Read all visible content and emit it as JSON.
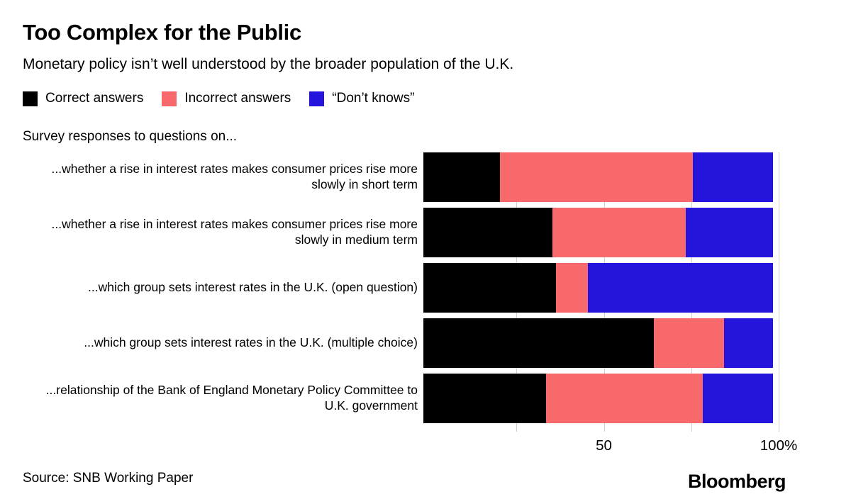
{
  "header": {
    "title": "Too Complex for the Public",
    "subtitle": "Monetary policy isn’t well understood by the broader population of the U.K."
  },
  "legend": [
    {
      "label": "Correct answers",
      "color": "#000000"
    },
    {
      "label": "Incorrect answers",
      "color": "#f8696b",
      "name": "incorrect"
    },
    {
      "label": "“Don’t knows”",
      "color": "#2414dc",
      "name": "dont-knows"
    }
  ],
  "chart_note": "Survey responses to questions on...",
  "chart_data": {
    "type": "bar",
    "orientation": "horizontal",
    "stacked": true,
    "title": "Too Complex for the Public",
    "subtitle": "Monetary policy isn’t well understood by the broader population of the U.K.",
    "note": "Survey responses to questions on...",
    "categories": [
      "...whether a rise in interest rates makes consumer prices rise more slowly in short term",
      "...whether a rise in interest rates makes consumer prices rise more slowly in medium term",
      "...which group sets interest rates in the U.K. (open question)",
      "...which group sets interest rates in the U.K. (multiple choice)",
      "...relationship of the Bank of England Monetary Policy Committee to U.K. government"
    ],
    "series": [
      {
        "name": "Correct answers",
        "color": "#000000",
        "values": [
          22,
          37,
          38,
          66,
          35
        ]
      },
      {
        "name": "Incorrect answers",
        "color": "#f8696b",
        "values": [
          55,
          38,
          9,
          20,
          45
        ]
      },
      {
        "name": "“Don’t knows”",
        "color": "#2414dc",
        "values": [
          23,
          25,
          53,
          14,
          20
        ]
      }
    ],
    "unit": "%",
    "xlim": [
      0,
      100
    ],
    "xticks": [
      {
        "value": 50,
        "label": "50"
      },
      {
        "value": 100,
        "label": "100%"
      }
    ],
    "gridlines": [
      25,
      50,
      75,
      100
    ],
    "grid_color": "#cfcfcf",
    "legend_position": "top"
  },
  "footer": {
    "source": "Source: SNB Working Paper",
    "brand": "Bloomberg"
  }
}
